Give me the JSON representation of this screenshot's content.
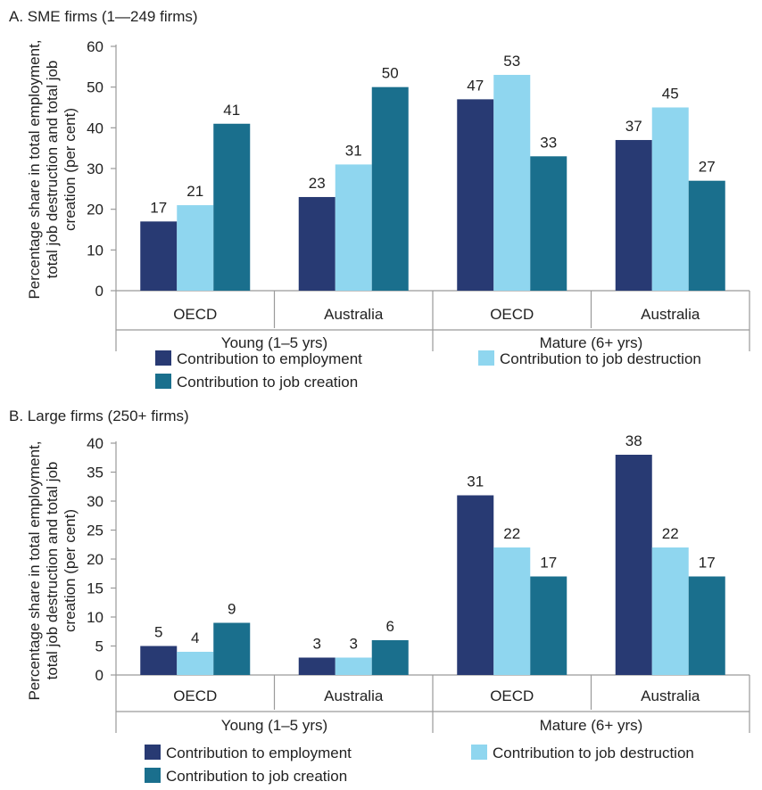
{
  "colors": {
    "employment": "#283a73",
    "destruction": "#8fd6ef",
    "creation": "#1a6f8d"
  },
  "legend": {
    "employment": "Contribution to employment",
    "destruction": "Contribution to job destruction",
    "creation": "Contribution to job creation"
  },
  "chart_data": [
    {
      "type": "bar",
      "title": "A. SME firms (1—249 firms)",
      "ylabel": "Percentage share in total employment, total job destruction and total job creation (per cent)",
      "ylim": [
        0,
        60
      ],
      "yticks": [
        0,
        10,
        20,
        30,
        40,
        50,
        60
      ],
      "groups": [
        "Young (1–5 yrs)",
        "Mature (6+ yrs)"
      ],
      "categories": [
        "OECD",
        "Australia",
        "OECD",
        "Australia"
      ],
      "series": [
        {
          "name": "Contribution to employment",
          "values": [
            17,
            23,
            47,
            37
          ]
        },
        {
          "name": "Contribution to job destruction",
          "values": [
            21,
            31,
            53,
            45
          ]
        },
        {
          "name": "Contribution to job creation",
          "values": [
            41,
            50,
            33,
            27
          ]
        }
      ]
    },
    {
      "type": "bar",
      "title": "B. Large firms (250+ firms)",
      "ylabel": "Percentage share in total employment, total job destruction and total job creation (per cent)",
      "ylim": [
        0,
        40
      ],
      "yticks": [
        0,
        5,
        10,
        15,
        20,
        25,
        30,
        35,
        40
      ],
      "groups": [
        "Young (1–5 yrs)",
        "Mature (6+ yrs)"
      ],
      "categories": [
        "OECD",
        "Australia",
        "OECD",
        "Australia"
      ],
      "series": [
        {
          "name": "Contribution to employment",
          "values": [
            5,
            3,
            31,
            38
          ]
        },
        {
          "name": "Contribution to job destruction",
          "values": [
            4,
            3,
            22,
            22
          ]
        },
        {
          "name": "Contribution to job creation",
          "values": [
            9,
            6,
            17,
            17
          ]
        }
      ]
    }
  ]
}
